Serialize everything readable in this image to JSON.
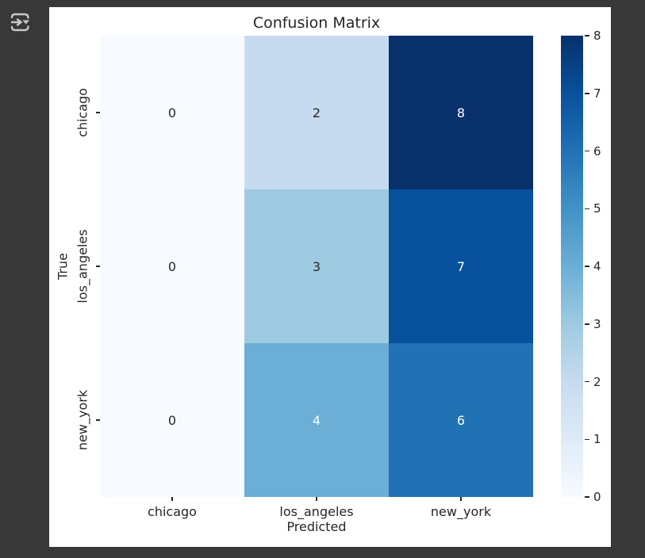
{
  "toolbar": {
    "icon": "output-presentation-icon"
  },
  "figure": {
    "title": "Confusion Matrix",
    "xlabel": "Predicted",
    "ylabel": "True"
  },
  "chart_data": {
    "type": "heatmap",
    "title": "Confusion Matrix",
    "xlabel": "Predicted",
    "ylabel": "True",
    "x_categories": [
      "chicago",
      "los_angeles",
      "new_york"
    ],
    "y_categories": [
      "chicago",
      "los_angeles",
      "new_york"
    ],
    "matrix": [
      [
        0,
        2,
        8
      ],
      [
        0,
        3,
        7
      ],
      [
        0,
        4,
        6
      ]
    ],
    "vmin": 0,
    "vmax": 8,
    "colormap": "Blues",
    "colormap_anchors": [
      "#f7fbff",
      "#deebf7",
      "#c6dbef",
      "#9ecae1",
      "#6baed6",
      "#4292c6",
      "#2171b5",
      "#08519c",
      "#08306b"
    ],
    "colorbar_ticks": [
      0,
      1,
      2,
      3,
      4,
      5,
      6,
      7,
      8
    ],
    "colorbar_position": "right",
    "annotated": true,
    "grid": false
  },
  "colors": {
    "page_background": "#383838",
    "figure_background": "#ffffff",
    "text": "#262626",
    "annotation_light": "#ffffff",
    "icon": "#c8c8c8"
  }
}
